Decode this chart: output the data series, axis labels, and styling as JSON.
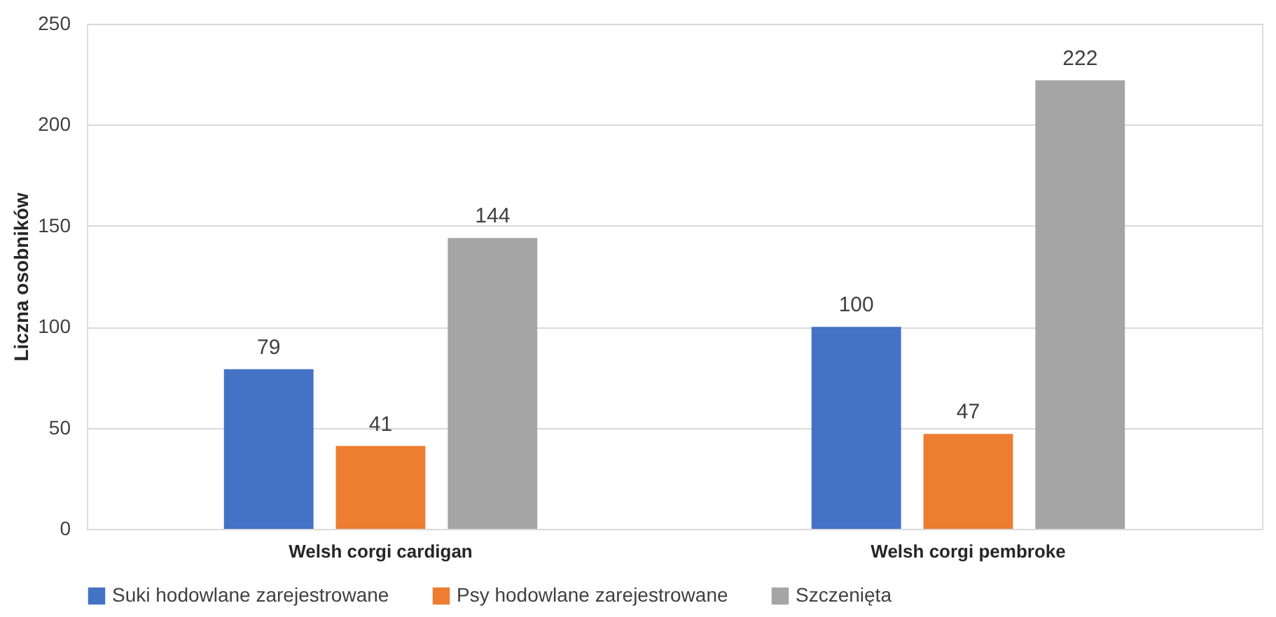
{
  "chart_data": {
    "type": "bar",
    "ylabel": "Liczna osobników",
    "categories": [
      "Welsh corgi cardigan",
      "Welsh corgi pembroke"
    ],
    "series": [
      {
        "name": "Suki hodowlane zarejestrowane",
        "color": "#4472c4",
        "values": [
          79,
          100
        ]
      },
      {
        "name": "Psy hodowlane zarejestrowane",
        "color": "#ed7d31",
        "values": [
          41,
          47
        ]
      },
      {
        "name": "Szczenięta",
        "color": "#a5a5a5",
        "values": [
          144,
          222
        ]
      }
    ],
    "ylim": [
      0,
      250
    ],
    "yticks": [
      0,
      50,
      100,
      150,
      200,
      250
    ],
    "grid": "y",
    "legend": "bottom",
    "data_labels": true
  }
}
